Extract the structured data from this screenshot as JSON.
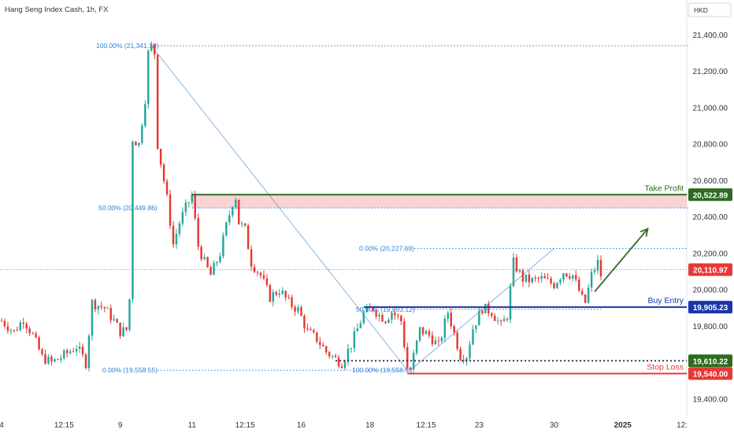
{
  "header": {
    "title": "Hang Seng Index Cash, 1h, FX",
    "currency": "HKD"
  },
  "colors": {
    "up": "#26a69a",
    "down": "#e53935",
    "fib": "#2f7fd2",
    "take_profit": "#2e6b1f",
    "entry": "#1a36a8",
    "stop": "#e53935",
    "zone_fill": "#f8c9c9",
    "current": "#e53935",
    "neutral": "#2e3440"
  },
  "chart_data": {
    "type": "candlestick",
    "title": "Hang Seng Index Cash, 1h, FX",
    "y_axis": {
      "ylim": [
        19300,
        21480
      ],
      "ticks": [
        "21,400.00",
        "21,200.00",
        "21,000.00",
        "20,800.00",
        "20,600.00",
        "20,400.00",
        "20,200.00",
        "20,000.00",
        "19,800.00",
        "19,600.00",
        "19,400.00"
      ],
      "tick_values": [
        21400,
        21200,
        21000,
        20800,
        20600,
        20400,
        20200,
        20000,
        19800,
        19600,
        19400
      ]
    },
    "x_axis": {
      "ticks": [
        "4",
        "12:15",
        "9",
        "11",
        "12:15",
        "16",
        "18",
        "12:15",
        "23",
        "30",
        "2025",
        "12:"
      ],
      "tick_index": [
        0,
        20,
        38,
        61,
        78,
        96,
        118,
        136,
        153,
        177,
        199,
        218
      ],
      "bold": [
        "2025"
      ]
    },
    "bar_count": 220,
    "price_path": [
      [
        0,
        19830
      ],
      [
        4,
        19770
      ],
      [
        7,
        19840
      ],
      [
        10,
        19750
      ],
      [
        13,
        19630
      ],
      [
        16,
        19600
      ],
      [
        20,
        19640
      ],
      [
        24,
        19690
      ],
      [
        27,
        19600
      ],
      [
        29,
        19930
      ],
      [
        33,
        19900
      ],
      [
        36,
        19830
      ],
      [
        38,
        19770
      ],
      [
        40,
        19780
      ],
      [
        41,
        19950
      ],
      [
        42,
        20830
      ],
      [
        44,
        20800
      ],
      [
        46,
        21050
      ],
      [
        47,
        21300
      ],
      [
        48,
        21335
      ],
      [
        49,
        21300
      ],
      [
        50,
        20800
      ],
      [
        53,
        20500
      ],
      [
        55,
        20250
      ],
      [
        57,
        20370
      ],
      [
        59,
        20450
      ],
      [
        61,
        20520
      ],
      [
        63,
        20240
      ],
      [
        65,
        20150
      ],
      [
        67,
        20080
      ],
      [
        70,
        20200
      ],
      [
        72,
        20350
      ],
      [
        74,
        20480
      ],
      [
        75,
        20510
      ],
      [
        76,
        20370
      ],
      [
        78,
        20330
      ],
      [
        80,
        20150
      ],
      [
        83,
        20080
      ],
      [
        86,
        19960
      ],
      [
        89,
        20000
      ],
      [
        92,
        19930
      ],
      [
        95,
        19890
      ],
      [
        98,
        19770
      ],
      [
        101,
        19730
      ],
      [
        104,
        19660
      ],
      [
        107,
        19620
      ],
      [
        109,
        19600
      ],
      [
        112,
        19700
      ],
      [
        116,
        19870
      ],
      [
        119,
        19900
      ],
      [
        121,
        19860
      ],
      [
        123,
        19840
      ],
      [
        125,
        19880
      ],
      [
        128,
        19830
      ],
      [
        130,
        19570
      ],
      [
        131,
        19565
      ],
      [
        134,
        19780
      ],
      [
        137,
        19750
      ],
      [
        140,
        19690
      ],
      [
        143,
        19880
      ],
      [
        147,
        19640
      ],
      [
        149,
        19640
      ],
      [
        151,
        19790
      ],
      [
        154,
        19900
      ],
      [
        157,
        19880
      ],
      [
        160,
        19800
      ],
      [
        162,
        19860
      ],
      [
        164,
        20150
      ],
      [
        167,
        20060
      ],
      [
        170,
        20050
      ],
      [
        173,
        20060
      ],
      [
        177,
        20030
      ],
      [
        180,
        20100
      ],
      [
        183,
        20080
      ],
      [
        186,
        19950
      ],
      [
        187,
        19930
      ],
      [
        189,
        20080
      ],
      [
        191,
        20150
      ],
      [
        192,
        20080
      ]
    ],
    "fibonacci": [
      {
        "level_label": "100.00% (21,341.18)",
        "value": 21341.18
      },
      {
        "level_label": "50.00% (20,449.86)",
        "value": 20449.86
      },
      {
        "level_label": "0.00% (19,558.55)",
        "value": 19558.55
      },
      {
        "level_label": "0.00% (20,227.69)",
        "value": 20227.69
      },
      {
        "level_label": "50.00% (19,893.12)",
        "value": 19893.12
      },
      {
        "level_label": "100.00% (19,558.55)",
        "value": 19558.55
      }
    ],
    "levels": [
      {
        "name": "Take Profit",
        "value": 20522.89,
        "price_label": "20,522.89"
      },
      {
        "name": "Buy Entry",
        "value": 19905.23,
        "price_label": "19,905.23"
      },
      {
        "name": "",
        "value": 19610.22,
        "price_label": "19,610.22"
      },
      {
        "name": "Stop Loss",
        "value": 19540.0,
        "price_label": "19,540.00"
      }
    ],
    "current_price": {
      "value": 20110.97,
      "label": "20,110.97"
    },
    "resistance_zone": [
      20449.86,
      20522.89
    ],
    "arrow": {
      "direction": "up",
      "from": [
        190,
        19990
      ],
      "to": [
        207,
        20335
      ]
    }
  },
  "labels": {
    "take_profit": "Take Profit",
    "buy_entry": "Buy Entry",
    "stop_loss": "Stop Loss"
  }
}
